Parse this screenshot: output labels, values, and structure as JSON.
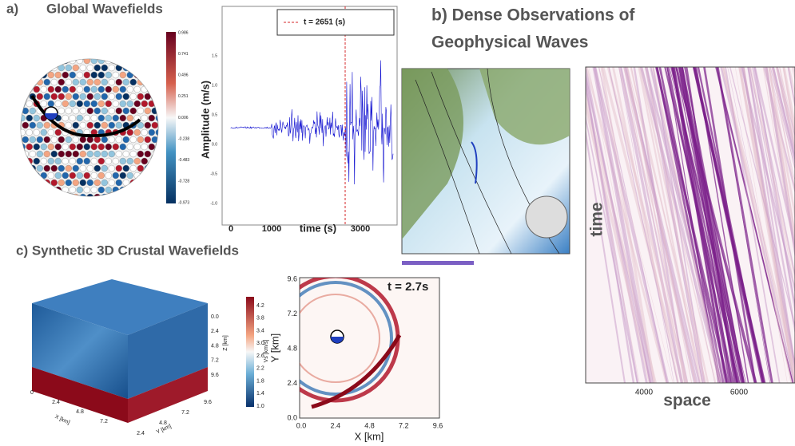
{
  "panel_a": {
    "label": "a)",
    "title": "Global Wavefields",
    "colorbar_ticks": [
      "0.986",
      "0.741",
      "0.496",
      "0.251",
      "0.006",
      "-0.238",
      "-0.483",
      "-0.728",
      "-0.973"
    ],
    "waveform": {
      "legend": "t = 2651 (s)",
      "ylabel": "Amplitude (m/s)",
      "xlabel": "time (s)",
      "yticks": [
        "1.5",
        "1.0",
        "0.5",
        "0.0",
        "-0.5",
        "-1.0"
      ],
      "xticks": [
        "0",
        "1000",
        "3000"
      ]
    }
  },
  "panel_b": {
    "title_line1": "b) Dense Observations of",
    "title_line2": "Geophysical Waves",
    "ylabel": "time",
    "xlabel": "space",
    "xticks": [
      "4000",
      "6000"
    ]
  },
  "panel_c": {
    "title": "c) Synthetic 3D Crustal Wavefields",
    "cube": {
      "z_label": "Z [km]",
      "z_ticks": [
        "0.0",
        "2.4",
        "4.8",
        "7.2",
        "9.6"
      ],
      "x_label": "X [km]",
      "x_ticks": [
        "0",
        "2.4",
        "4.8",
        "7.2"
      ],
      "y_label": "Y [km]",
      "y_ticks": [
        "2.4",
        "4.8",
        "7.2",
        "9.6"
      ]
    },
    "colorbar_label": "Vs [km/s]",
    "colorbar_ticks": [
      "4.2",
      "3.8",
      "3.4",
      "3.0",
      "2.6",
      "2.2",
      "1.8",
      "1.4",
      "1.0"
    ],
    "snapshot": {
      "time": "t = 2.7s",
      "ylabel": "Y [km]",
      "xlabel": "X [km]",
      "yticks": [
        "9.6",
        "7.2",
        "4.8",
        "2.4",
        "0.0"
      ],
      "xticks": [
        "0.0",
        "2.4",
        "4.8",
        "7.2",
        "9.6"
      ]
    }
  }
}
